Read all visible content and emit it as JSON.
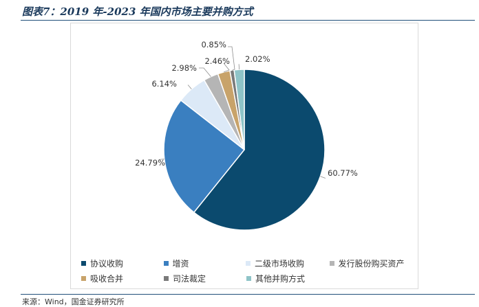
{
  "title": "图表7：2019 年-2023 年国内市场主要并购方式",
  "source": "来源：Wind，国金证券研究所",
  "chart_data": {
    "type": "pie",
    "slices": [
      {
        "name": "协议收购",
        "value": 60.77,
        "label": "60.77%",
        "color": "#0b4a6e"
      },
      {
        "name": "增资",
        "value": 24.79,
        "label": "24.79%",
        "color": "#3a7fc0"
      },
      {
        "name": "二级市场收购",
        "value": 6.14,
        "label": "6.14%",
        "color": "#dce9f7"
      },
      {
        "name": "发行股份购买资产",
        "value": 2.98,
        "label": "2.98%",
        "color": "#b5b5b5"
      },
      {
        "name": "吸收合并",
        "value": 2.46,
        "label": "2.46%",
        "color": "#c8a36a"
      },
      {
        "name": "司法裁定",
        "value": 0.85,
        "label": "0.85%",
        "color": "#7a7a7a"
      },
      {
        "name": "其他并购方式",
        "value": 2.02,
        "label": "2.02%",
        "color": "#8fc4c8"
      }
    ],
    "legend_position": "bottom"
  }
}
